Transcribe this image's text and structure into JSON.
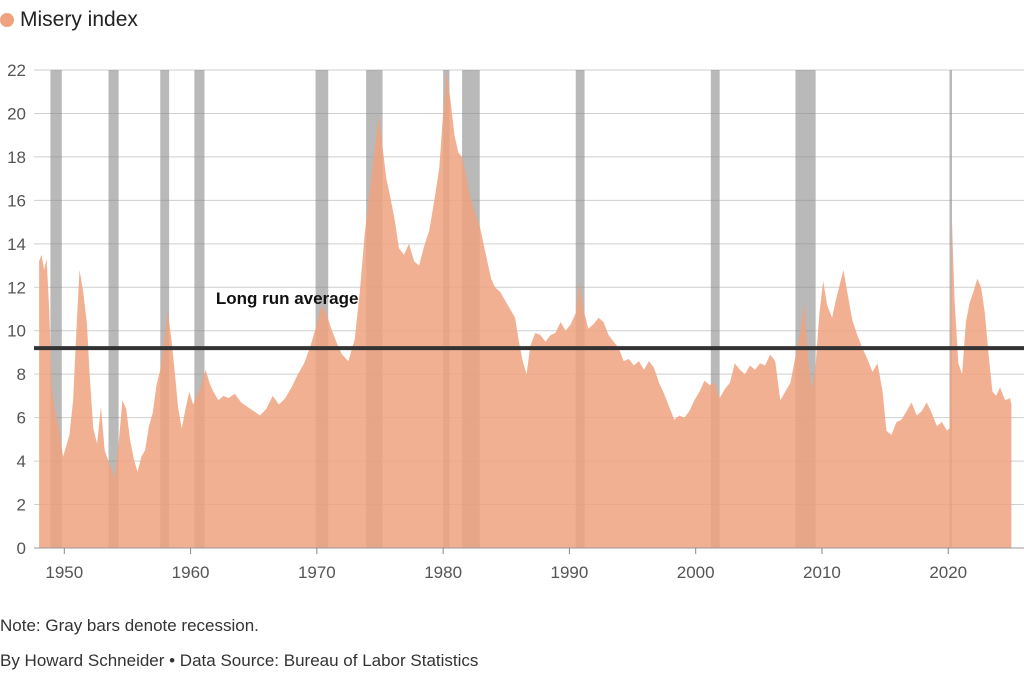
{
  "legend": {
    "label": "Misery index",
    "color": "#f0a27f"
  },
  "note": "Note: Gray bars denote recession.",
  "byline": "By Howard Schneider • Data Source: Bureau of Labor Statistics",
  "chart_data": {
    "type": "area",
    "series": [
      {
        "name": "Misery index",
        "color": "#f0a27f",
        "points": [
          [
            1948.0,
            13.2
          ],
          [
            1948.2,
            13.5
          ],
          [
            1948.4,
            12.8
          ],
          [
            1948.6,
            13.3
          ],
          [
            1948.8,
            11.0
          ],
          [
            1949.0,
            7.5
          ],
          [
            1949.3,
            6.2
          ],
          [
            1949.6,
            5.5
          ],
          [
            1949.9,
            4.2
          ],
          [
            1950.1,
            4.6
          ],
          [
            1950.4,
            5.2
          ],
          [
            1950.7,
            6.8
          ],
          [
            1951.0,
            10.5
          ],
          [
            1951.2,
            12.8
          ],
          [
            1951.5,
            11.8
          ],
          [
            1951.8,
            10.3
          ],
          [
            1952.0,
            8.0
          ],
          [
            1952.3,
            5.5
          ],
          [
            1952.6,
            4.8
          ],
          [
            1952.9,
            6.5
          ],
          [
            1953.2,
            4.5
          ],
          [
            1953.5,
            4.0
          ],
          [
            1953.8,
            3.6
          ],
          [
            1954.0,
            3.2
          ],
          [
            1954.3,
            4.8
          ],
          [
            1954.6,
            6.8
          ],
          [
            1954.9,
            6.4
          ],
          [
            1955.2,
            5.0
          ],
          [
            1955.5,
            4.1
          ],
          [
            1955.8,
            3.5
          ],
          [
            1956.1,
            4.2
          ],
          [
            1956.4,
            4.5
          ],
          [
            1956.7,
            5.6
          ],
          [
            1957.0,
            6.2
          ],
          [
            1957.3,
            7.5
          ],
          [
            1957.6,
            8.2
          ],
          [
            1957.9,
            9.5
          ],
          [
            1958.2,
            10.9
          ],
          [
            1958.5,
            9.5
          ],
          [
            1958.8,
            7.8
          ],
          [
            1959.0,
            6.5
          ],
          [
            1959.3,
            5.5
          ],
          [
            1959.6,
            6.4
          ],
          [
            1959.9,
            7.2
          ],
          [
            1960.2,
            6.6
          ],
          [
            1960.5,
            7.0
          ],
          [
            1960.8,
            7.4
          ],
          [
            1961.2,
            8.2
          ],
          [
            1961.5,
            7.6
          ],
          [
            1961.8,
            7.2
          ],
          [
            1962.2,
            6.8
          ],
          [
            1962.6,
            7.0
          ],
          [
            1963.0,
            6.9
          ],
          [
            1963.5,
            7.1
          ],
          [
            1964.0,
            6.7
          ],
          [
            1964.5,
            6.5
          ],
          [
            1965.0,
            6.3
          ],
          [
            1965.5,
            6.1
          ],
          [
            1966.0,
            6.4
          ],
          [
            1966.5,
            7.0
          ],
          [
            1967.0,
            6.6
          ],
          [
            1967.5,
            6.9
          ],
          [
            1968.0,
            7.4
          ],
          [
            1968.5,
            8.0
          ],
          [
            1969.0,
            8.5
          ],
          [
            1969.5,
            9.3
          ],
          [
            1970.0,
            10.3
          ],
          [
            1970.4,
            11.2
          ],
          [
            1970.8,
            10.7
          ],
          [
            1971.2,
            10.0
          ],
          [
            1971.6,
            9.4
          ],
          [
            1972.0,
            8.9
          ],
          [
            1972.5,
            8.6
          ],
          [
            1973.0,
            9.6
          ],
          [
            1973.4,
            11.8
          ],
          [
            1973.8,
            14.5
          ],
          [
            1974.2,
            16.5
          ],
          [
            1974.6,
            18.5
          ],
          [
            1974.9,
            19.9
          ],
          [
            1975.2,
            18.5
          ],
          [
            1975.5,
            17.0
          ],
          [
            1975.8,
            16.2
          ],
          [
            1976.2,
            15.0
          ],
          [
            1976.5,
            13.8
          ],
          [
            1976.9,
            13.5
          ],
          [
            1977.3,
            14.0
          ],
          [
            1977.7,
            13.2
          ],
          [
            1978.1,
            13.0
          ],
          [
            1978.5,
            13.9
          ],
          [
            1978.9,
            14.6
          ],
          [
            1979.3,
            16.0
          ],
          [
            1979.7,
            17.5
          ],
          [
            1980.0,
            20.0
          ],
          [
            1980.3,
            21.9
          ],
          [
            1980.6,
            20.5
          ],
          [
            1980.9,
            19.0
          ],
          [
            1981.2,
            18.2
          ],
          [
            1981.5,
            18.0
          ],
          [
            1981.8,
            17.2
          ],
          [
            1982.1,
            16.3
          ],
          [
            1982.5,
            15.5
          ],
          [
            1982.9,
            14.8
          ],
          [
            1983.2,
            14.0
          ],
          [
            1983.5,
            13.2
          ],
          [
            1983.8,
            12.4
          ],
          [
            1984.1,
            12.0
          ],
          [
            1984.5,
            11.8
          ],
          [
            1984.9,
            11.4
          ],
          [
            1985.3,
            11.0
          ],
          [
            1985.7,
            10.6
          ],
          [
            1986.0,
            9.5
          ],
          [
            1986.3,
            8.6
          ],
          [
            1986.6,
            8.0
          ],
          [
            1986.9,
            9.3
          ],
          [
            1987.3,
            9.9
          ],
          [
            1987.7,
            9.8
          ],
          [
            1988.1,
            9.5
          ],
          [
            1988.5,
            9.8
          ],
          [
            1988.9,
            9.9
          ],
          [
            1989.3,
            10.4
          ],
          [
            1989.7,
            10.0
          ],
          [
            1990.1,
            10.3
          ],
          [
            1990.5,
            10.8
          ],
          [
            1990.8,
            12.2
          ],
          [
            1991.1,
            11.0
          ],
          [
            1991.5,
            10.1
          ],
          [
            1991.9,
            10.3
          ],
          [
            1992.3,
            10.6
          ],
          [
            1992.7,
            10.4
          ],
          [
            1993.1,
            9.8
          ],
          [
            1993.5,
            9.5
          ],
          [
            1993.9,
            9.2
          ],
          [
            1994.3,
            8.6
          ],
          [
            1994.7,
            8.7
          ],
          [
            1995.1,
            8.4
          ],
          [
            1995.5,
            8.6
          ],
          [
            1995.9,
            8.2
          ],
          [
            1996.3,
            8.6
          ],
          [
            1996.7,
            8.3
          ],
          [
            1997.1,
            7.6
          ],
          [
            1997.5,
            7.1
          ],
          [
            1997.9,
            6.5
          ],
          [
            1998.3,
            5.9
          ],
          [
            1998.7,
            6.1
          ],
          [
            1999.1,
            6.0
          ],
          [
            1999.5,
            6.3
          ],
          [
            1999.9,
            6.8
          ],
          [
            2000.3,
            7.2
          ],
          [
            2000.7,
            7.7
          ],
          [
            2001.1,
            7.5
          ],
          [
            2001.5,
            7.6
          ],
          [
            2001.9,
            6.9
          ],
          [
            2002.3,
            7.3
          ],
          [
            2002.7,
            7.6
          ],
          [
            2003.1,
            8.5
          ],
          [
            2003.5,
            8.2
          ],
          [
            2003.9,
            8.0
          ],
          [
            2004.3,
            8.4
          ],
          [
            2004.7,
            8.2
          ],
          [
            2005.1,
            8.5
          ],
          [
            2005.5,
            8.4
          ],
          [
            2005.9,
            8.9
          ],
          [
            2006.3,
            8.6
          ],
          [
            2006.7,
            6.8
          ],
          [
            2007.1,
            7.2
          ],
          [
            2007.5,
            7.6
          ],
          [
            2007.9,
            8.8
          ],
          [
            2008.3,
            10.0
          ],
          [
            2008.6,
            11.3
          ],
          [
            2008.9,
            8.7
          ],
          [
            2009.2,
            7.3
          ],
          [
            2009.5,
            8.4
          ],
          [
            2009.8,
            10.8
          ],
          [
            2010.1,
            12.3
          ],
          [
            2010.4,
            11.2
          ],
          [
            2010.8,
            10.6
          ],
          [
            2011.1,
            11.4
          ],
          [
            2011.4,
            12.1
          ],
          [
            2011.7,
            12.8
          ],
          [
            2012.0,
            11.8
          ],
          [
            2012.4,
            10.5
          ],
          [
            2012.8,
            9.8
          ],
          [
            2013.2,
            9.2
          ],
          [
            2013.6,
            8.7
          ],
          [
            2014.0,
            8.1
          ],
          [
            2014.4,
            8.5
          ],
          [
            2014.8,
            7.2
          ],
          [
            2015.1,
            5.4
          ],
          [
            2015.5,
            5.2
          ],
          [
            2015.9,
            5.8
          ],
          [
            2016.3,
            5.9
          ],
          [
            2016.7,
            6.3
          ],
          [
            2017.1,
            6.7
          ],
          [
            2017.5,
            6.1
          ],
          [
            2017.9,
            6.3
          ],
          [
            2018.3,
            6.7
          ],
          [
            2018.7,
            6.2
          ],
          [
            2019.1,
            5.6
          ],
          [
            2019.5,
            5.8
          ],
          [
            2019.9,
            5.4
          ],
          [
            2020.1,
            5.5
          ],
          [
            2020.3,
            15.0
          ],
          [
            2020.5,
            11.5
          ],
          [
            2020.8,
            8.5
          ],
          [
            2021.1,
            8.0
          ],
          [
            2021.4,
            10.4
          ],
          [
            2021.7,
            11.3
          ],
          [
            2022.0,
            11.8
          ],
          [
            2022.3,
            12.4
          ],
          [
            2022.6,
            12.0
          ],
          [
            2022.9,
            10.8
          ],
          [
            2023.2,
            8.9
          ],
          [
            2023.5,
            7.2
          ],
          [
            2023.8,
            7.0
          ],
          [
            2024.1,
            7.4
          ],
          [
            2024.5,
            6.8
          ],
          [
            2024.9,
            6.9
          ],
          [
            2025.0,
            6.6
          ]
        ]
      }
    ],
    "recessions": [
      [
        1948.9,
        1949.8
      ],
      [
        1953.5,
        1954.3
      ],
      [
        1957.6,
        1958.3
      ],
      [
        1960.3,
        1961.1
      ],
      [
        1969.9,
        1970.9
      ],
      [
        1973.9,
        1975.2
      ],
      [
        1980.0,
        1980.5
      ],
      [
        1981.5,
        1982.9
      ],
      [
        1990.5,
        1991.2
      ],
      [
        2001.2,
        2001.9
      ],
      [
        2007.9,
        2009.5
      ],
      [
        2020.1,
        2020.3
      ]
    ],
    "long_run_average": {
      "value": 9.2,
      "label": "Long run average"
    },
    "xlim": [
      1947.6,
      2026.0
    ],
    "ylim": [
      0,
      22
    ],
    "x_ticks": [
      1950,
      1960,
      1970,
      1980,
      1990,
      2000,
      2010,
      2020
    ],
    "y_ticks": [
      0,
      2,
      4,
      6,
      8,
      10,
      12,
      14,
      16,
      18,
      20,
      22
    ],
    "grid": true,
    "colors": {
      "area": "#f0a27f",
      "recession": "#8a8a8a",
      "average_line": "#333333",
      "grid": "#cfcfcf"
    }
  }
}
